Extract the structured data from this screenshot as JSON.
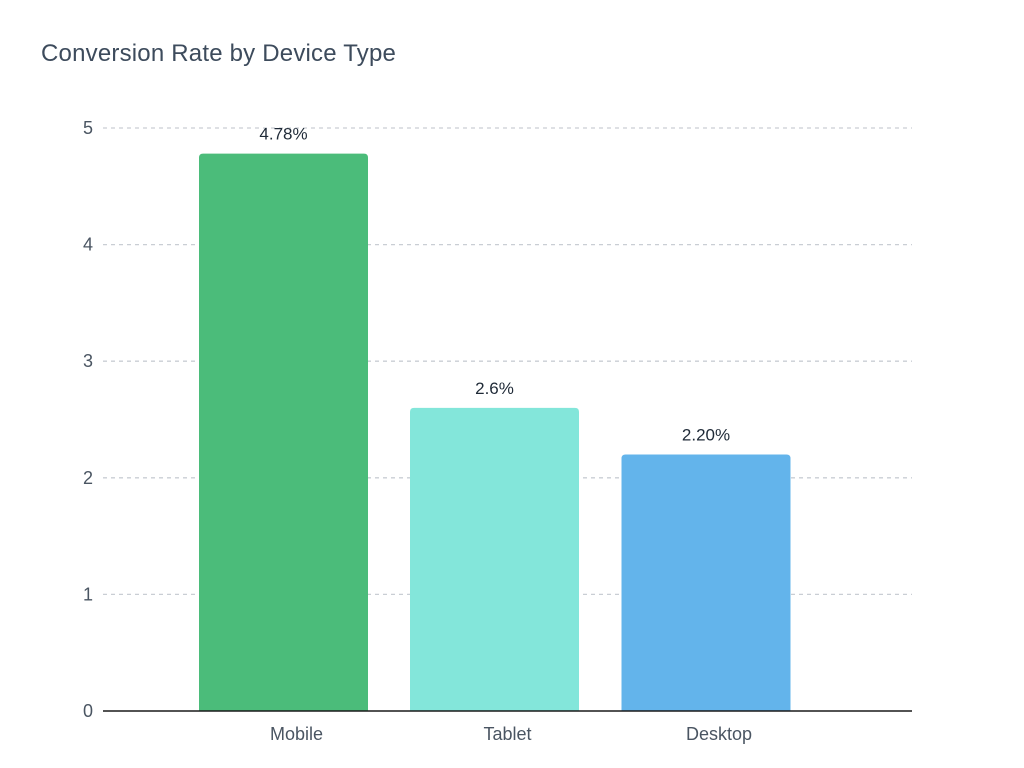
{
  "chart_data": {
    "type": "bar",
    "title": "Conversion Rate by Device Type",
    "xlabel": "",
    "ylabel": "",
    "categories": [
      "Mobile",
      "Tablet",
      "Desktop"
    ],
    "values": [
      4.78,
      2.6,
      2.2
    ],
    "data_labels": [
      "4.78%",
      "2.6%",
      "2.20%"
    ],
    "colors": [
      "#4bbc7a",
      "#83e6da",
      "#63b4eb"
    ],
    "ylim": [
      0,
      5
    ],
    "yticks": [
      0,
      1,
      2,
      3,
      4,
      5
    ],
    "grid": true,
    "legend": "none"
  }
}
